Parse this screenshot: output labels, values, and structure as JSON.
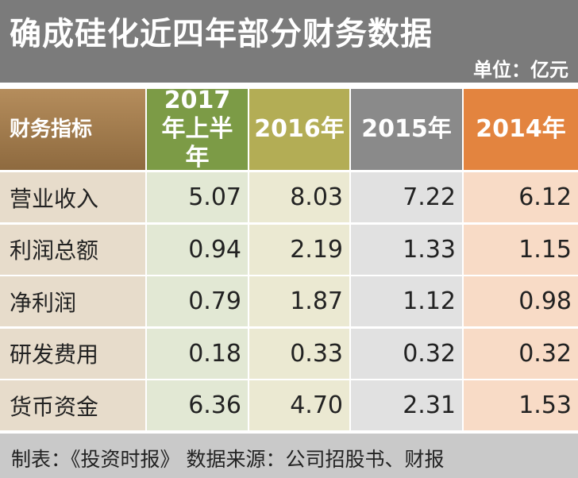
{
  "header": {
    "title": "确成硅化近四年部分财务数据",
    "unit": "单位：亿元"
  },
  "table": {
    "columns": [
      "财务指标",
      "2017年上半年",
      "2016年",
      "2015年",
      "2014年"
    ],
    "rows": [
      [
        "营业收入",
        "5.07",
        "8.03",
        "7.22",
        "6.12"
      ],
      [
        "利润总额",
        "0.94",
        "2.19",
        "1.33",
        "1.15"
      ],
      [
        "净利润",
        "0.79",
        "1.87",
        "1.12",
        "0.98"
      ],
      [
        "研发费用",
        "0.18",
        "0.33",
        "0.32",
        "0.32"
      ],
      [
        "货币资金",
        "6.36",
        "4.70",
        "2.31",
        "1.53"
      ]
    ]
  },
  "footer": {
    "text": "制表：《投资时报》 数据来源：公司招股书、财报"
  }
}
